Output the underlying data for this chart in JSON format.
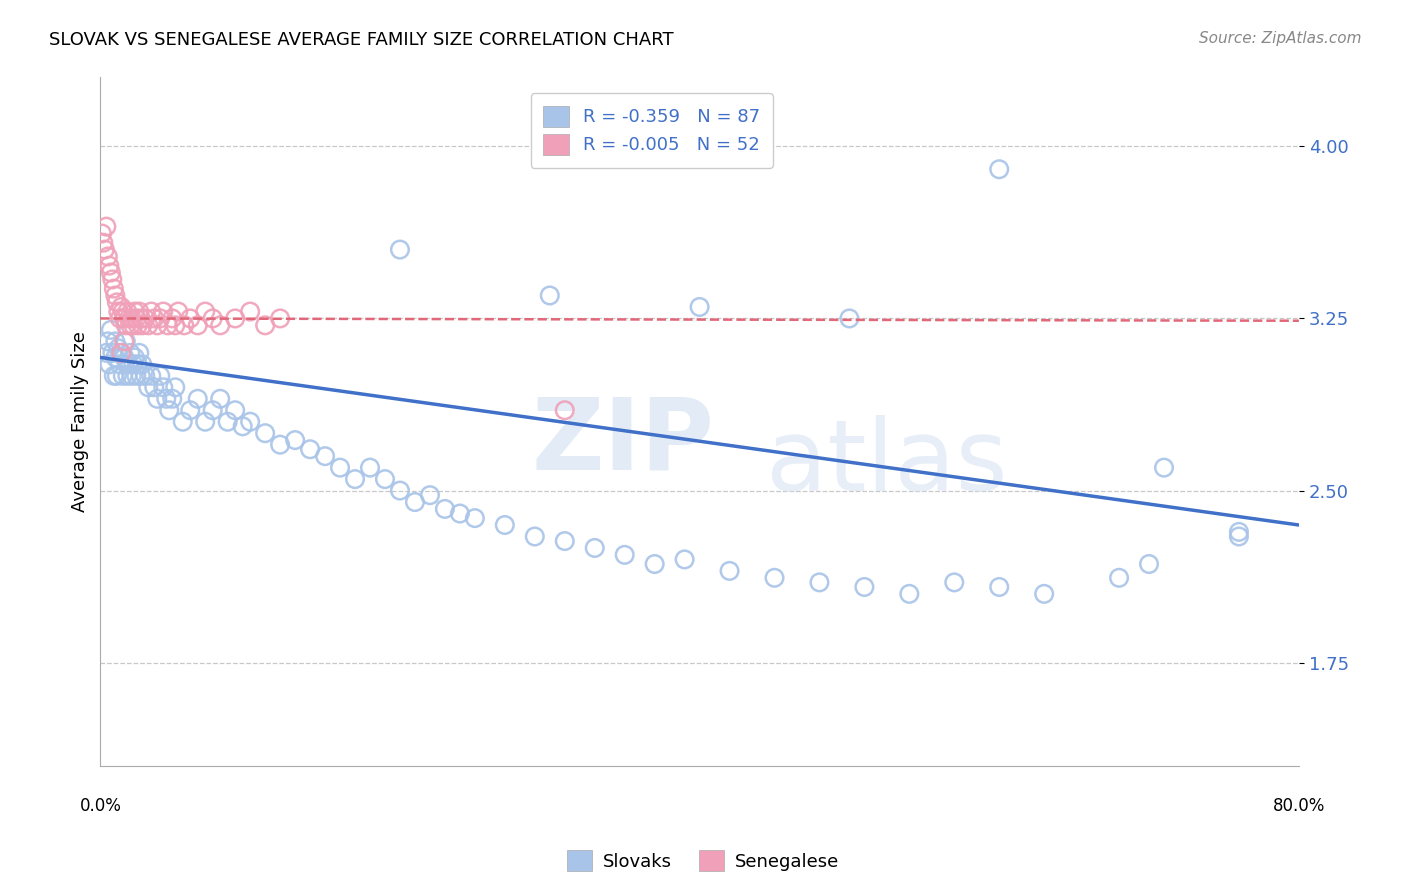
{
  "title": "SLOVAK VS SENEGALESE AVERAGE FAMILY SIZE CORRELATION CHART",
  "source": "Source: ZipAtlas.com",
  "ylabel": "Average Family Size",
  "yticks": [
    1.75,
    2.5,
    3.25,
    4.0
  ],
  "xlim": [
    0.0,
    0.8
  ],
  "ylim": [
    1.3,
    4.3
  ],
  "blue_R": -0.359,
  "blue_N": 87,
  "pink_R": -0.005,
  "pink_N": 52,
  "blue_color": "#a8c4e8",
  "pink_color": "#f0a0b8",
  "blue_line_color": "#4070c8",
  "pink_line_color": "#e06878",
  "blue_scatter_x": [
    0.004,
    0.005,
    0.006,
    0.007,
    0.008,
    0.009,
    0.01,
    0.01,
    0.011,
    0.012,
    0.013,
    0.014,
    0.015,
    0.016,
    0.017,
    0.018,
    0.019,
    0.02,
    0.021,
    0.022,
    0.023,
    0.024,
    0.025,
    0.026,
    0.027,
    0.028,
    0.03,
    0.032,
    0.034,
    0.036,
    0.038,
    0.04,
    0.042,
    0.044,
    0.046,
    0.048,
    0.05,
    0.055,
    0.06,
    0.065,
    0.07,
    0.075,
    0.08,
    0.085,
    0.09,
    0.095,
    0.1,
    0.11,
    0.12,
    0.13,
    0.14,
    0.15,
    0.16,
    0.17,
    0.18,
    0.19,
    0.2,
    0.21,
    0.22,
    0.23,
    0.24,
    0.25,
    0.27,
    0.29,
    0.31,
    0.33,
    0.35,
    0.37,
    0.39,
    0.42,
    0.45,
    0.48,
    0.51,
    0.54,
    0.57,
    0.6,
    0.63,
    0.68,
    0.7,
    0.76,
    0.2,
    0.3,
    0.4,
    0.5,
    0.6,
    0.71,
    0.76
  ],
  "blue_scatter_y": [
    3.1,
    3.15,
    3.05,
    3.2,
    3.1,
    3.0,
    3.08,
    3.15,
    3.0,
    3.12,
    3.05,
    3.1,
    3.0,
    3.08,
    3.15,
    3.0,
    3.05,
    3.1,
    3.0,
    3.05,
    3.08,
    3.0,
    3.05,
    3.1,
    3.0,
    3.05,
    3.0,
    2.95,
    3.0,
    2.95,
    2.9,
    3.0,
    2.95,
    2.9,
    2.85,
    2.9,
    2.95,
    2.8,
    2.85,
    2.9,
    2.8,
    2.85,
    2.9,
    2.8,
    2.85,
    2.78,
    2.8,
    2.75,
    2.7,
    2.72,
    2.68,
    2.65,
    2.6,
    2.55,
    2.6,
    2.55,
    2.5,
    2.45,
    2.48,
    2.42,
    2.4,
    2.38,
    2.35,
    2.3,
    2.28,
    2.25,
    2.22,
    2.18,
    2.2,
    2.15,
    2.12,
    2.1,
    2.08,
    2.05,
    2.1,
    2.08,
    2.05,
    2.12,
    2.18,
    2.3,
    3.55,
    3.35,
    3.3,
    3.25,
    3.9,
    2.6,
    2.32
  ],
  "pink_scatter_x": [
    0.001,
    0.002,
    0.003,
    0.004,
    0.005,
    0.006,
    0.007,
    0.008,
    0.009,
    0.01,
    0.011,
    0.012,
    0.013,
    0.014,
    0.015,
    0.016,
    0.017,
    0.018,
    0.019,
    0.02,
    0.021,
    0.022,
    0.023,
    0.024,
    0.025,
    0.026,
    0.027,
    0.028,
    0.03,
    0.032,
    0.034,
    0.036,
    0.038,
    0.04,
    0.042,
    0.045,
    0.048,
    0.052,
    0.056,
    0.06,
    0.065,
    0.07,
    0.075,
    0.08,
    0.09,
    0.1,
    0.11,
    0.12,
    0.014,
    0.016,
    0.31,
    0.05
  ],
  "pink_scatter_y": [
    3.62,
    3.58,
    3.55,
    3.65,
    3.52,
    3.48,
    3.45,
    3.42,
    3.38,
    3.35,
    3.32,
    3.28,
    3.25,
    3.3,
    3.28,
    3.25,
    3.22,
    3.28,
    3.25,
    3.22,
    3.25,
    3.22,
    3.28,
    3.25,
    3.22,
    3.28,
    3.25,
    3.22,
    3.25,
    3.22,
    3.28,
    3.25,
    3.22,
    3.25,
    3.28,
    3.22,
    3.25,
    3.28,
    3.22,
    3.25,
    3.22,
    3.28,
    3.25,
    3.22,
    3.25,
    3.28,
    3.22,
    3.25,
    3.1,
    3.15,
    2.85,
    3.22
  ],
  "blue_trendline": [
    3.08,
    2.35
  ],
  "pink_trendline": [
    3.25,
    3.24
  ]
}
